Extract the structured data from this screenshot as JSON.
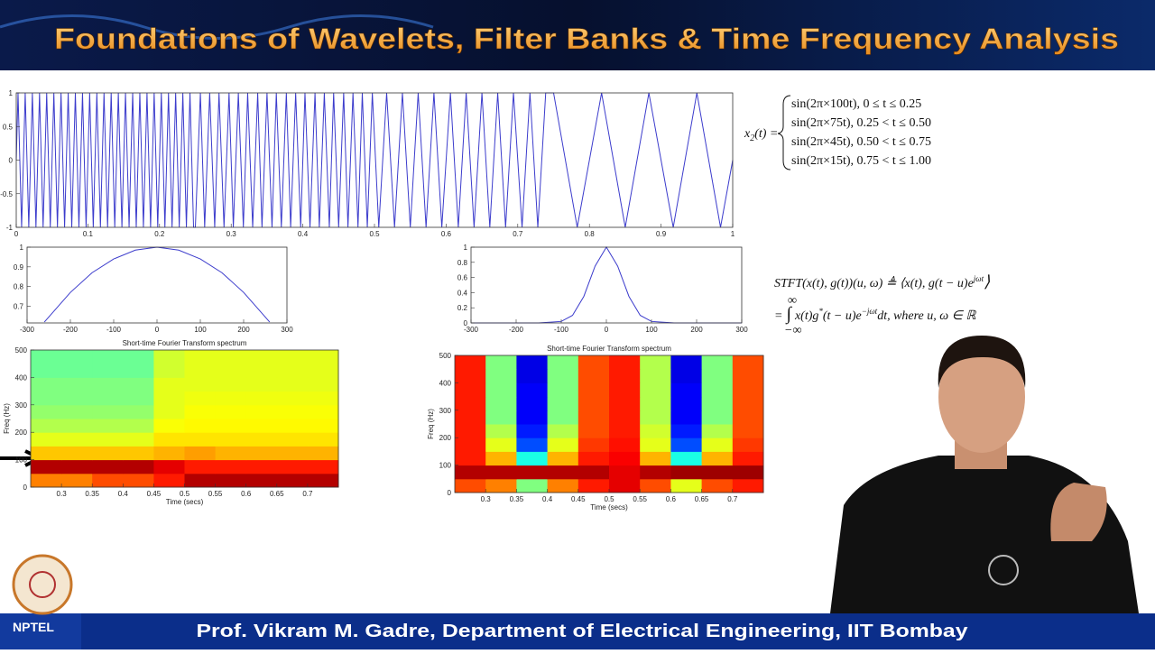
{
  "header": {
    "title": "Foundations of Wavelets, Filter Banks & Time Frequency Analysis"
  },
  "equations": {
    "signal": {
      "lhs": "x",
      "sub": "2",
      "lhs2": "(t) =",
      "cases": [
        "sin(2π×100t), 0 ≤ t ≤ 0.25",
        "sin(2π×75t), 0.25 < t ≤ 0.50",
        "sin(2π×45t), 0.50 < t ≤ 0.75",
        "sin(2π×15t), 0.75 < t ≤ 1.00"
      ]
    },
    "stft": {
      "lhs": "STFT(x(t), g(t))(u, ω) ≜ ⟨x(t), g(t − u)e",
      "exp1": "jωt",
      "close": "⟩",
      "eq": "=",
      "integral": "∫",
      "upper": "∞",
      "lower": "−∞",
      "body": "x(t)g",
      "star": "*",
      "body2": "(t − u)e",
      "exp2": "−jωt",
      "tail": "dt, where u, ω ∈ ℝ"
    }
  },
  "chart_data": [
    {
      "type": "line",
      "color": "#3c3ccc",
      "x": [
        0,
        0.0025,
        0.0075,
        0.0125,
        0.0175,
        0.0225,
        0.0275,
        0.0325,
        0.0375,
        0.0425,
        0.0475,
        0.0525,
        0.0575,
        0.0625,
        0.0675,
        0.0725,
        0.0775,
        0.0825,
        0.0875,
        0.0925,
        0.0975,
        0.1025,
        0.1075,
        0.1125,
        0.1175,
        0.1225,
        0.1275,
        0.1325,
        0.1375,
        0.1425,
        0.1475,
        0.1525,
        0.1575,
        0.1625,
        0.1675,
        0.1725,
        0.1775,
        0.1825,
        0.1875,
        0.1925,
        0.1975,
        0.2025,
        0.2075,
        0.2125,
        0.2175,
        0.2225,
        0.2275,
        0.2325,
        0.2375,
        0.2425,
        0.2475,
        0.25,
        0.257,
        0.263,
        0.27,
        0.277,
        0.283,
        0.29,
        0.297,
        0.303,
        0.31,
        0.317,
        0.323,
        0.33,
        0.337,
        0.343,
        0.35,
        0.357,
        0.363,
        0.37,
        0.377,
        0.383,
        0.39,
        0.397,
        0.403,
        0.41,
        0.417,
        0.423,
        0.43,
        0.437,
        0.443,
        0.45,
        0.457,
        0.463,
        0.47,
        0.477,
        0.483,
        0.49,
        0.497,
        0.506,
        0.517,
        0.528,
        0.539,
        0.55,
        0.561,
        0.572,
        0.583,
        0.594,
        0.606,
        0.617,
        0.628,
        0.639,
        0.65,
        0.661,
        0.672,
        0.683,
        0.694,
        0.706,
        0.717,
        0.728,
        0.739,
        0.75,
        0.783,
        0.817,
        0.85,
        0.883,
        0.917,
        0.95,
        0.983,
        1
      ],
      "values": [
        0,
        1,
        -1,
        1,
        -1,
        1,
        -1,
        1,
        -1,
        1,
        -1,
        1,
        -1,
        1,
        -1,
        1,
        -1,
        1,
        -1,
        1,
        -1,
        1,
        -1,
        1,
        -1,
        1,
        -1,
        1,
        -1,
        1,
        -1,
        1,
        -1,
        1,
        -1,
        1,
        -1,
        1,
        -1,
        1,
        -1,
        1,
        -1,
        1,
        -1,
        1,
        -1,
        1,
        -1,
        1,
        -1,
        -1,
        1,
        -1,
        1,
        -1,
        1,
        -1,
        1,
        -1,
        1,
        -1,
        1,
        -1,
        1,
        -1,
        1,
        -1,
        1,
        -1,
        1,
        -1,
        1,
        -1,
        1,
        -1,
        1,
        -1,
        1,
        -1,
        1,
        -1,
        1,
        -1,
        1,
        -1,
        1,
        -1,
        1,
        -1,
        1,
        -1,
        1,
        -1,
        1,
        -1,
        1,
        -1,
        1,
        -1,
        1,
        -1,
        1,
        -1,
        1,
        -1,
        1,
        -1,
        1,
        -1,
        1,
        1,
        -1,
        1,
        -1,
        1,
        -1,
        1,
        -1,
        0
      ],
      "xlim": [
        0,
        1
      ],
      "ylim": [
        -1,
        1
      ],
      "xticks": [
        0,
        0.1,
        0.2,
        0.3,
        0.4,
        0.5,
        0.6,
        0.7,
        0.8,
        0.9,
        1
      ],
      "yticks": [
        -1,
        -0.5,
        0,
        0.5,
        1
      ]
    },
    {
      "type": "line",
      "color": "#3c3ccc",
      "x": [
        -260,
        -200,
        -150,
        -100,
        -50,
        0,
        50,
        100,
        150,
        200,
        260
      ],
      "values": [
        0.62,
        0.77,
        0.87,
        0.94,
        0.985,
        1,
        0.985,
        0.94,
        0.87,
        0.77,
        0.62
      ],
      "xlim": [
        -300,
        300
      ],
      "ylim": [
        0.615,
        1
      ],
      "xticks": [
        -300,
        -200,
        -100,
        0,
        100,
        200,
        300
      ],
      "yticks": [
        0.7,
        0.8,
        0.9,
        1
      ]
    },
    {
      "type": "line",
      "color": "#3c3ccc",
      "x": [
        -300,
        -150,
        -100,
        -75,
        -50,
        -25,
        0,
        25,
        50,
        75,
        100,
        150,
        300
      ],
      "values": [
        0,
        0,
        0.02,
        0.1,
        0.35,
        0.75,
        1,
        0.75,
        0.35,
        0.1,
        0.02,
        0,
        0
      ],
      "xlim": [
        -300,
        300
      ],
      "ylim": [
        0,
        1
      ],
      "xticks": [
        -300,
        -200,
        -100,
        0,
        100,
        200,
        300
      ],
      "yticks": [
        0,
        0.2,
        0.4,
        0.6,
        0.8,
        1
      ]
    },
    {
      "type": "heatmap",
      "title": "Short-time Fourier Transform spectrum",
      "xlabel": "Time (secs)",
      "ylabel": "Freq (Hz)",
      "x": [
        0.25,
        0.3,
        0.35,
        0.4,
        0.45,
        0.5,
        0.55,
        0.6,
        0.65,
        0.7,
        0.75
      ],
      "y": [
        0,
        50,
        100,
        150,
        200,
        250,
        300,
        350,
        400,
        450,
        500
      ],
      "values": [
        [
          0.75,
          0.75,
          0.8,
          0.8,
          0.85,
          0.95,
          0.95,
          0.95,
          0.95,
          0.95
        ],
        [
          0.95,
          0.95,
          0.95,
          0.95,
          0.9,
          0.85,
          0.85,
          0.85,
          0.85,
          0.85
        ],
        [
          0.68,
          0.68,
          0.68,
          0.68,
          0.7,
          0.72,
          0.7,
          0.7,
          0.7,
          0.7
        ],
        [
          0.6,
          0.6,
          0.6,
          0.6,
          0.65,
          0.65,
          0.65,
          0.65,
          0.65,
          0.65
        ],
        [
          0.55,
          0.55,
          0.55,
          0.55,
          0.62,
          0.63,
          0.63,
          0.63,
          0.63,
          0.63
        ],
        [
          0.52,
          0.52,
          0.52,
          0.52,
          0.6,
          0.62,
          0.62,
          0.62,
          0.62,
          0.62
        ],
        [
          0.5,
          0.5,
          0.5,
          0.5,
          0.6,
          0.61,
          0.61,
          0.61,
          0.61,
          0.61
        ],
        [
          0.5,
          0.5,
          0.5,
          0.5,
          0.6,
          0.6,
          0.6,
          0.6,
          0.6,
          0.6
        ],
        [
          0.48,
          0.48,
          0.48,
          0.48,
          0.58,
          0.6,
          0.6,
          0.6,
          0.6,
          0.6
        ],
        [
          0.48,
          0.48,
          0.48,
          0.48,
          0.58,
          0.6,
          0.6,
          0.6,
          0.6,
          0.6
        ]
      ],
      "xlim": [
        0.25,
        0.75
      ],
      "ylim": [
        0,
        500
      ],
      "xticks": [
        0.3,
        0.35,
        0.4,
        0.45,
        0.5,
        0.55,
        0.6,
        0.65,
        0.7
      ],
      "yticks": [
        0,
        100,
        200,
        300,
        400,
        500
      ]
    },
    {
      "type": "heatmap",
      "title": "Short-time Fourier Transform spectrum",
      "xlabel": "Time (secs)",
      "ylabel": "Freq (Hz)",
      "x": [
        0.25,
        0.3,
        0.35,
        0.4,
        0.45,
        0.5,
        0.55,
        0.6,
        0.65,
        0.7,
        0.75
      ],
      "y": [
        0,
        50,
        100,
        150,
        200,
        250,
        300,
        350,
        400,
        450,
        500
      ],
      "values": [
        [
          0.8,
          0.75,
          0.5,
          0.75,
          0.85,
          0.9,
          0.8,
          0.6,
          0.8,
          0.85
        ],
        [
          0.95,
          0.95,
          0.95,
          0.95,
          0.95,
          0.9,
          0.95,
          0.97,
          0.97,
          0.97
        ],
        [
          0.85,
          0.7,
          0.4,
          0.7,
          0.85,
          0.88,
          0.7,
          0.4,
          0.7,
          0.85
        ],
        [
          0.85,
          0.6,
          0.2,
          0.6,
          0.82,
          0.86,
          0.6,
          0.2,
          0.6,
          0.82
        ],
        [
          0.85,
          0.55,
          0.15,
          0.55,
          0.8,
          0.85,
          0.58,
          0.15,
          0.55,
          0.8
        ],
        [
          0.85,
          0.5,
          0.12,
          0.5,
          0.8,
          0.85,
          0.55,
          0.12,
          0.5,
          0.8
        ],
        [
          0.85,
          0.5,
          0.12,
          0.5,
          0.8,
          0.85,
          0.55,
          0.12,
          0.5,
          0.8
        ],
        [
          0.85,
          0.5,
          0.12,
          0.5,
          0.8,
          0.85,
          0.55,
          0.12,
          0.5,
          0.8
        ],
        [
          0.85,
          0.5,
          0.1,
          0.5,
          0.8,
          0.85,
          0.55,
          0.1,
          0.5,
          0.8
        ],
        [
          0.85,
          0.5,
          0.1,
          0.5,
          0.8,
          0.85,
          0.55,
          0.1,
          0.5,
          0.8
        ]
      ],
      "xlim": [
        0.25,
        0.75
      ],
      "ylim": [
        0,
        500
      ],
      "xticks": [
        0.3,
        0.35,
        0.4,
        0.45,
        0.5,
        0.55,
        0.6,
        0.65,
        0.7
      ],
      "yticks": [
        0,
        100,
        200,
        300,
        400,
        500
      ]
    }
  ],
  "footer": {
    "logo": "NPTEL",
    "credit": "Prof. Vikram M. Gadre, Department of Electrical Engineering, IIT Bombay"
  }
}
